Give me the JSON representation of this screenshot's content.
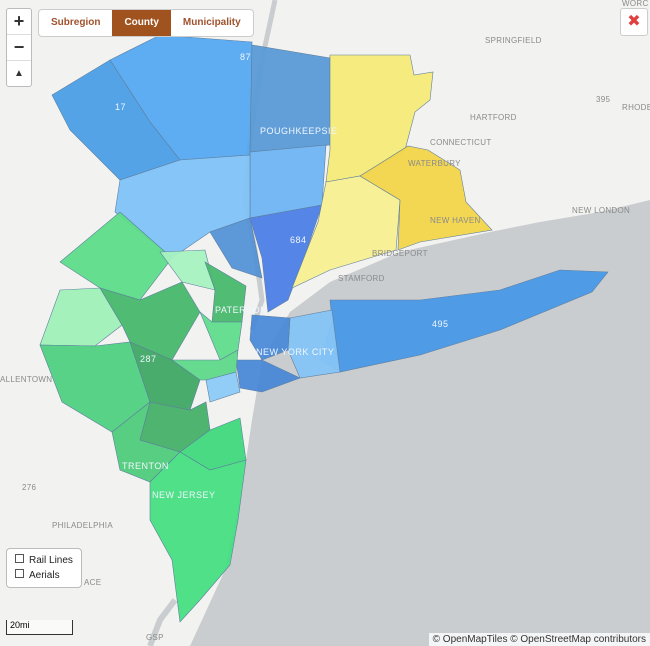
{
  "controls": {
    "zoom_in": "+",
    "zoom_out": "−"
  },
  "tabs": [
    "Subregion",
    "County",
    "Municipality"
  ],
  "active_tab_index": 1,
  "layers": [
    "Rail Lines",
    "Aerials"
  ],
  "scale": "20mi",
  "attribution": "© OpenMapTiles © OpenStreetMap contributors",
  "map_labels": [
    "WORC",
    "SPRINGFIELD",
    "HARTFORD",
    "CONNECTICUT",
    "WATERBURY",
    "NEW HAVEN",
    "NEW LONDON",
    "RHODE",
    "395",
    "POUGHKEEPSIE",
    "684",
    "BRIDGEPORT",
    "STAMFORD",
    "PATERSON",
    "NEW YORK CITY",
    "495",
    "287",
    "TRENTON",
    "NEW JERSEY",
    "PHILADELPHIA",
    "ALLENTOWN",
    "276",
    "87",
    "17",
    "GSP",
    "ACE"
  ]
}
